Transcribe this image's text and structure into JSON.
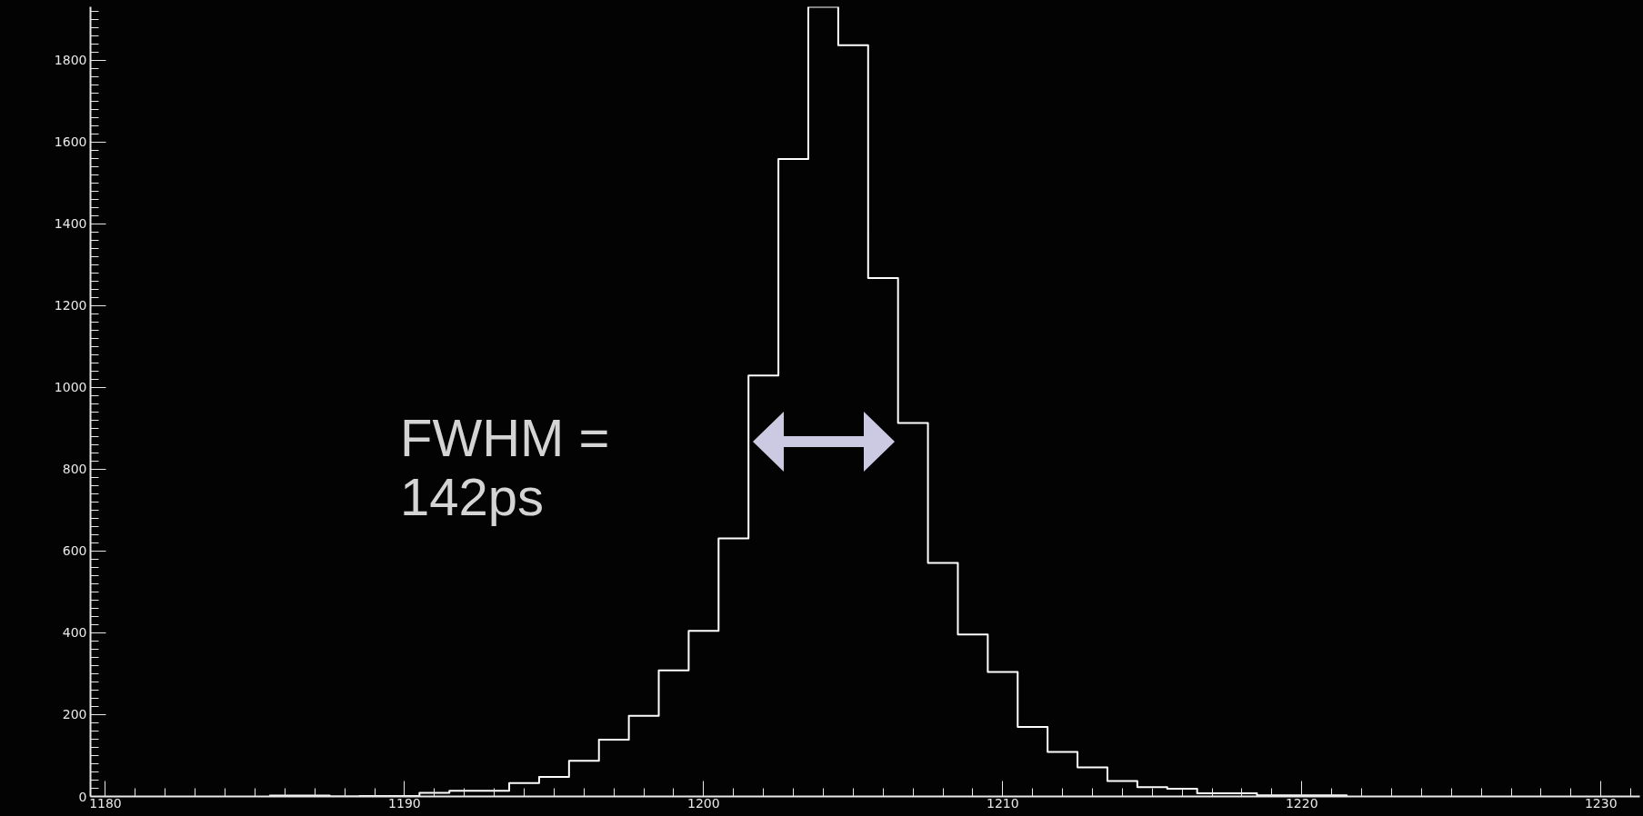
{
  "chart_data": {
    "type": "histogram",
    "bins": [
      1185.5,
      1186.5,
      1187.5,
      1188.5,
      1189.5,
      1190.5,
      1191.5,
      1192.5,
      1193.5,
      1194.5,
      1195.5,
      1196.5,
      1197.5,
      1198.5,
      1199.5,
      1200.5,
      1201.5,
      1202.5,
      1203.5,
      1204.5,
      1205.5,
      1206.5,
      1207.5,
      1208.5,
      1209.5,
      1210.5,
      1211.5,
      1212.5,
      1213.5,
      1214.5,
      1215.5,
      1216.5,
      1217.5,
      1218.5,
      1219.5,
      1220.5,
      1221.5
    ],
    "values": [
      2,
      2,
      0,
      1,
      1,
      9,
      14,
      14,
      33,
      48,
      87,
      139,
      197,
      308,
      405,
      631,
      1029,
      1558,
      1930,
      1836,
      1267,
      913,
      571,
      396,
      304,
      170,
      109,
      71,
      38,
      23,
      19,
      8,
      8,
      3,
      3,
      3
    ],
    "color": "#ffffff",
    "xlim": [
      1179.5,
      1231.3
    ],
    "ylim": [
      0,
      1930
    ],
    "xticks": [
      1180,
      1190,
      1200,
      1210,
      1220,
      1230
    ],
    "yticks": [
      0,
      200,
      400,
      600,
      800,
      1000,
      1200,
      1400,
      1600,
      1800
    ],
    "grid": false,
    "annotations": [
      "FWHM =\n142ps"
    ]
  }
}
